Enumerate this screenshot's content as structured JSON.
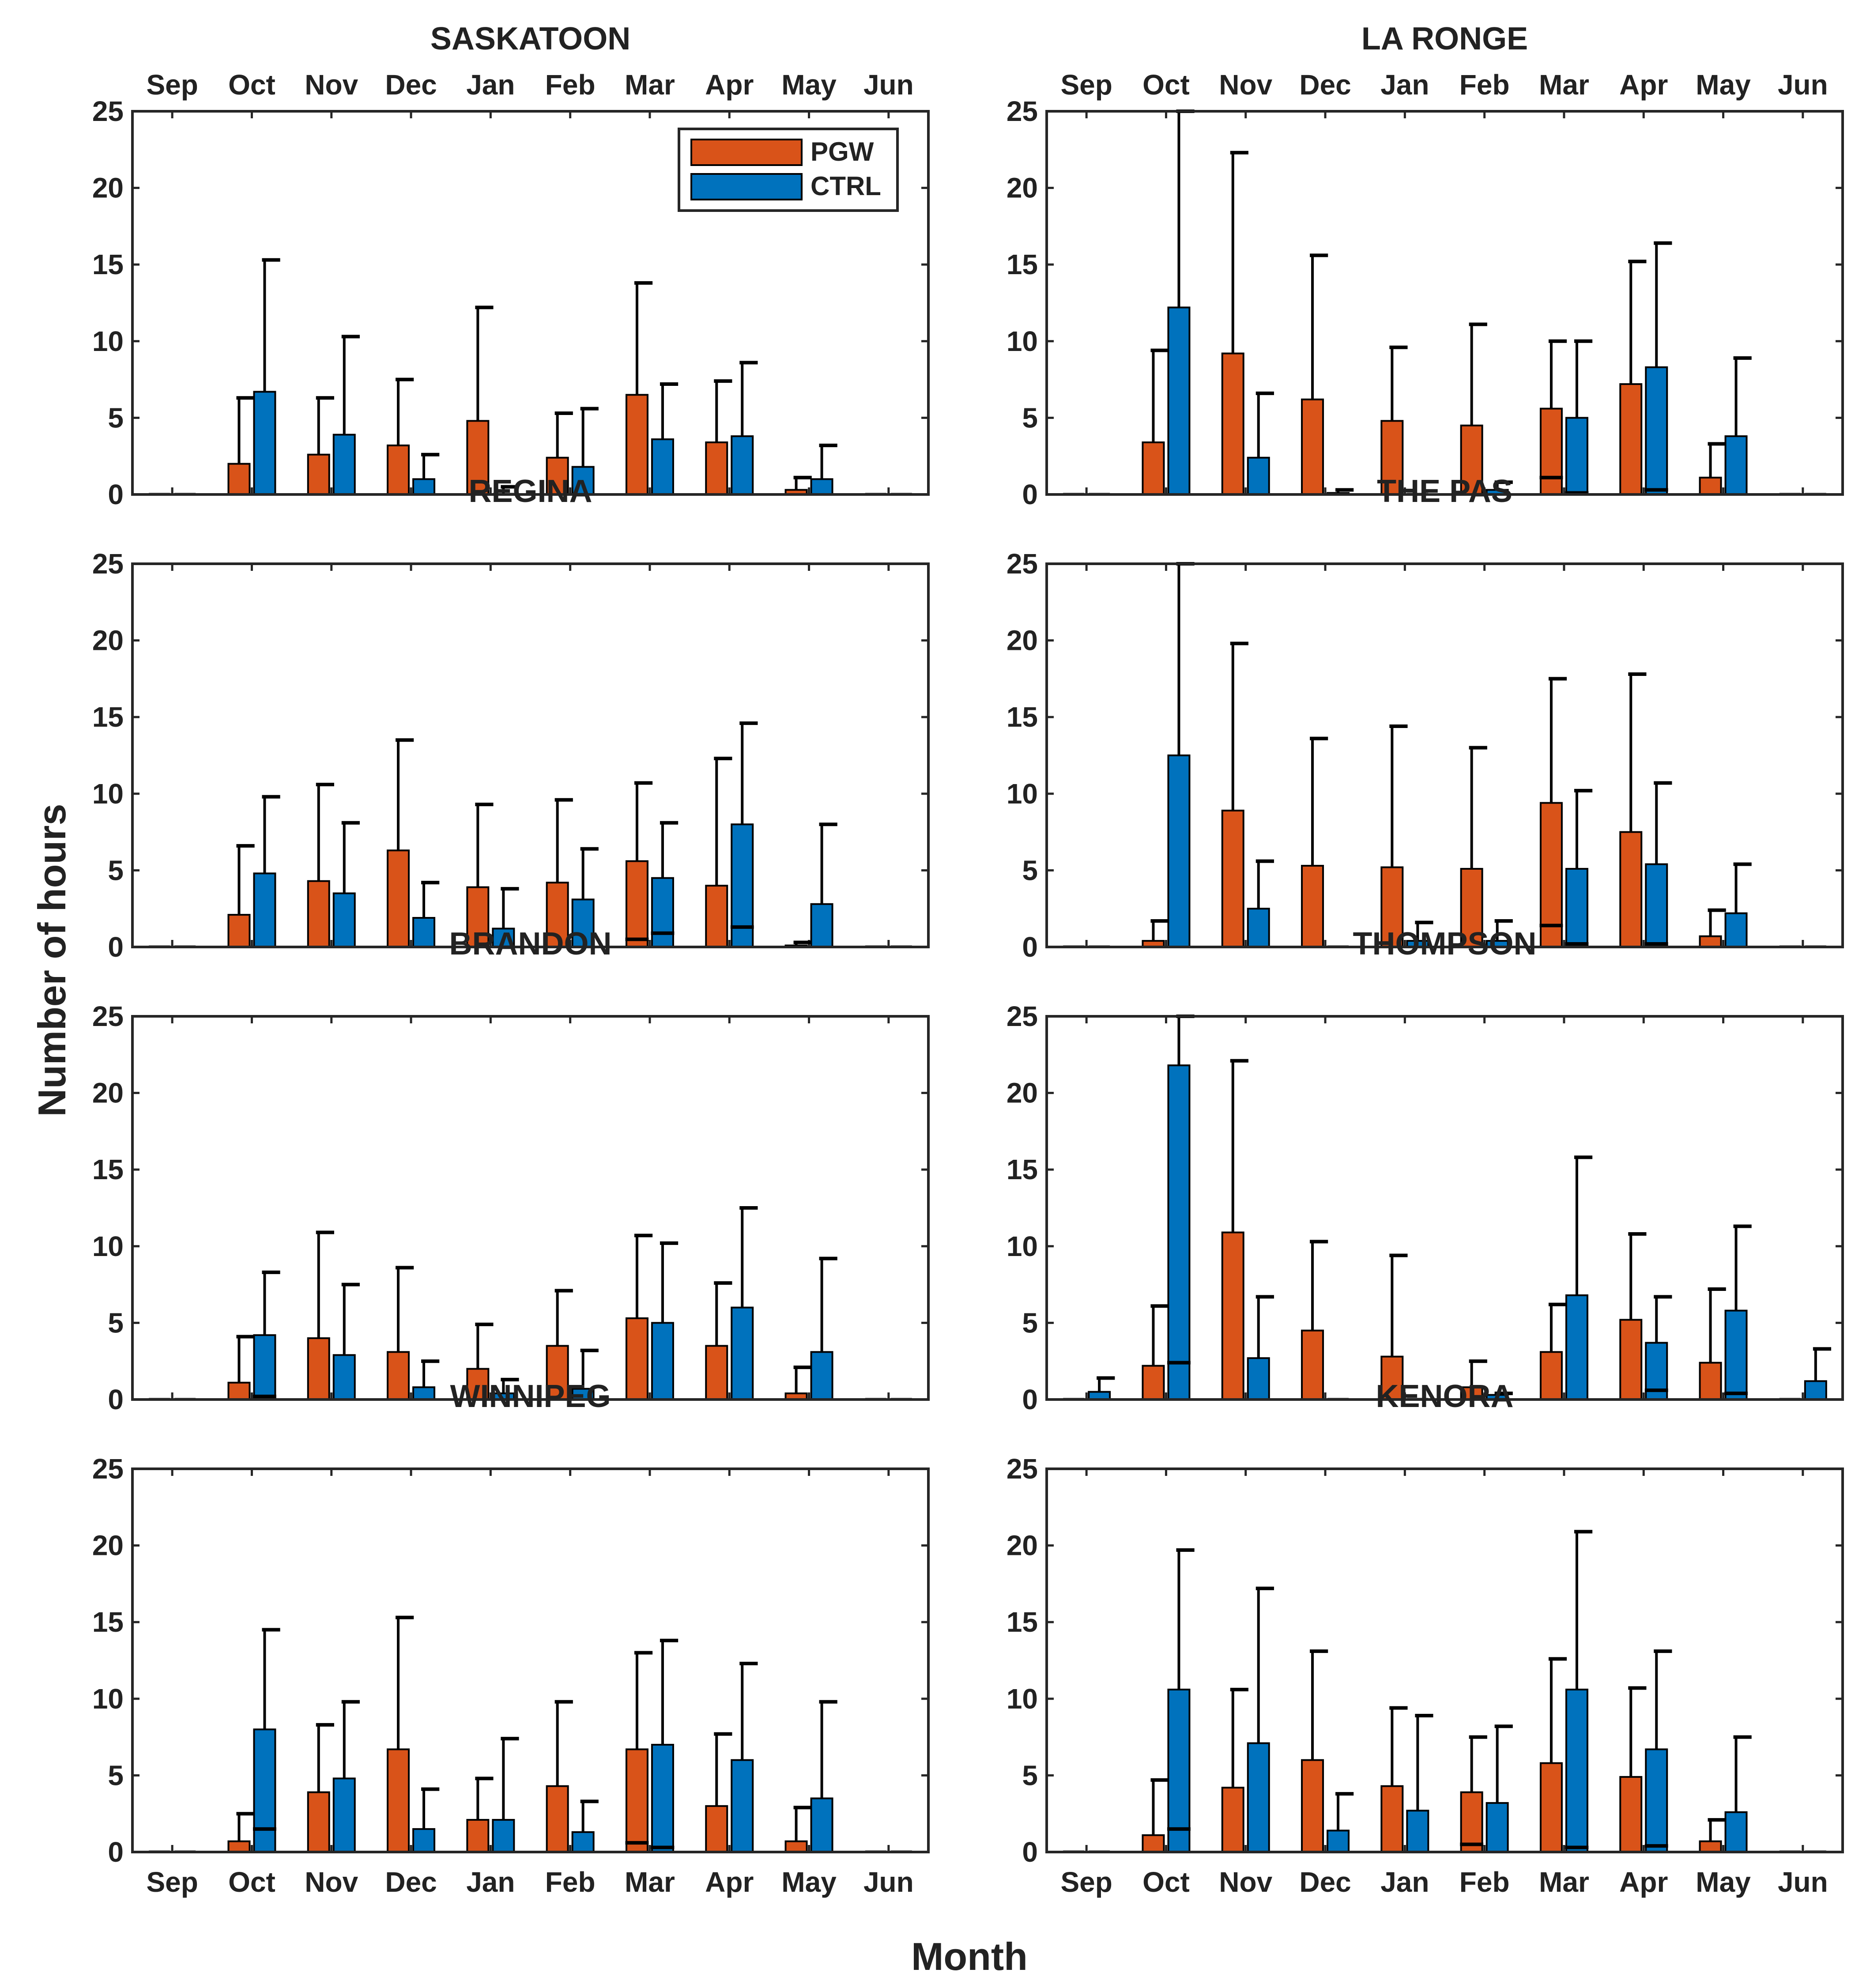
{
  "figure": {
    "xlabel": "Month",
    "ylabel": "Number of hours"
  },
  "colors": {
    "pgw": "#d95319",
    "ctrl": "#0072bd",
    "axis": "#262626",
    "errorbar": "#000000"
  },
  "legend": {
    "placement": "top-right of first panel",
    "items": [
      {
        "label": "PGW",
        "color": "#d95319"
      },
      {
        "label": "CTRL",
        "color": "#0072bd"
      }
    ]
  },
  "chart_data": [
    {
      "type": "bar",
      "title": "SASKATOON",
      "categories": [
        "Sep",
        "Oct",
        "Nov",
        "Dec",
        "Jan",
        "Feb",
        "Mar",
        "Apr",
        "May",
        "Jun"
      ],
      "ylim": [
        0,
        25
      ],
      "yticks": [
        0,
        5,
        10,
        15,
        20,
        25
      ],
      "series": [
        {
          "name": "PGW",
          "values": [
            0,
            2.0,
            2.6,
            3.2,
            4.8,
            2.4,
            6.5,
            3.4,
            0.3,
            0
          ],
          "error_upper": [
            0,
            6.3,
            6.3,
            7.5,
            12.2,
            5.3,
            13.8,
            7.4,
            1.1,
            0
          ],
          "error_lower": [
            0,
            0,
            0,
            0,
            0,
            0,
            0,
            0,
            0,
            0
          ]
        },
        {
          "name": "CTRL",
          "values": [
            0,
            6.7,
            3.9,
            1.0,
            0,
            1.8,
            3.6,
            3.8,
            1.0,
            0
          ],
          "error_upper": [
            0,
            15.3,
            10.3,
            2.6,
            0.5,
            5.6,
            7.2,
            8.6,
            3.2,
            0
          ],
          "error_lower": [
            0,
            0,
            0,
            0,
            0,
            0,
            0,
            0,
            0,
            0
          ]
        }
      ]
    },
    {
      "type": "bar",
      "title": "LA RONGE",
      "categories": [
        "Sep",
        "Oct",
        "Nov",
        "Dec",
        "Jan",
        "Feb",
        "Mar",
        "Apr",
        "May",
        "Jun"
      ],
      "ylim": [
        0,
        25
      ],
      "yticks": [
        0,
        5,
        10,
        15,
        20,
        25
      ],
      "series": [
        {
          "name": "PGW",
          "values": [
            0,
            3.4,
            9.2,
            6.2,
            4.8,
            4.5,
            5.6,
            7.2,
            1.1,
            0
          ],
          "error_upper": [
            0,
            9.4,
            22.3,
            15.6,
            9.6,
            11.1,
            10.0,
            15.2,
            3.3,
            0
          ],
          "error_lower": [
            0,
            0,
            0,
            0,
            0,
            0,
            1.1,
            0,
            0,
            0
          ]
        },
        {
          "name": "CTRL",
          "values": [
            0,
            12.2,
            2.4,
            0.1,
            0,
            0.3,
            5.0,
            8.3,
            3.8,
            0
          ],
          "error_upper": [
            0,
            25.0,
            6.6,
            0.3,
            0,
            0.8,
            10.0,
            16.4,
            8.9,
            0
          ],
          "error_lower": [
            0,
            0,
            0,
            0,
            0,
            0,
            0.1,
            0.3,
            0,
            0
          ]
        }
      ]
    },
    {
      "type": "bar",
      "title": "REGINA",
      "categories": [
        "Sep",
        "Oct",
        "Nov",
        "Dec",
        "Jan",
        "Feb",
        "Mar",
        "Apr",
        "May",
        "Jun"
      ],
      "ylim": [
        0,
        25
      ],
      "yticks": [
        0,
        5,
        10,
        15,
        20,
        25
      ],
      "series": [
        {
          "name": "PGW",
          "values": [
            0,
            2.1,
            4.3,
            6.3,
            3.9,
            4.2,
            5.6,
            4.0,
            0.1,
            0
          ],
          "error_upper": [
            0,
            6.6,
            10.6,
            13.5,
            9.3,
            9.6,
            10.7,
            12.3,
            0.3,
            0
          ],
          "error_lower": [
            0,
            0,
            0,
            0,
            0,
            0,
            0.5,
            0,
            0,
            0
          ]
        },
        {
          "name": "CTRL",
          "values": [
            0,
            4.8,
            3.5,
            1.9,
            1.2,
            3.1,
            4.5,
            8.0,
            2.8,
            0
          ],
          "error_upper": [
            0,
            9.8,
            8.1,
            4.2,
            3.8,
            6.4,
            8.1,
            14.6,
            8.0,
            0
          ],
          "error_lower": [
            0,
            0,
            0,
            0,
            0,
            0,
            0.9,
            1.3,
            0,
            0
          ]
        }
      ]
    },
    {
      "type": "bar",
      "title": "THE PAS",
      "categories": [
        "Sep",
        "Oct",
        "Nov",
        "Dec",
        "Jan",
        "Feb",
        "Mar",
        "Apr",
        "May",
        "Jun"
      ],
      "ylim": [
        0,
        25
      ],
      "yticks": [
        0,
        5,
        10,
        15,
        20,
        25
      ],
      "series": [
        {
          "name": "PGW",
          "values": [
            0,
            0.4,
            8.9,
            5.3,
            5.2,
            5.1,
            9.4,
            7.5,
            0.7,
            0
          ],
          "error_upper": [
            0,
            1.7,
            19.8,
            13.6,
            14.4,
            13.0,
            17.5,
            17.8,
            2.4,
            0
          ],
          "error_lower": [
            0,
            0,
            0,
            0,
            0,
            0,
            1.4,
            0,
            0,
            0
          ]
        },
        {
          "name": "CTRL",
          "values": [
            0,
            12.5,
            2.5,
            0,
            0.4,
            0.4,
            5.1,
            5.4,
            2.2,
            0
          ],
          "error_upper": [
            0,
            25.0,
            5.6,
            0,
            1.6,
            1.7,
            10.2,
            10.7,
            5.4,
            0
          ],
          "error_lower": [
            0,
            0,
            0,
            0,
            0,
            0,
            0.2,
            0.2,
            0,
            0
          ]
        }
      ]
    },
    {
      "type": "bar",
      "title": "BRANDON",
      "categories": [
        "Sep",
        "Oct",
        "Nov",
        "Dec",
        "Jan",
        "Feb",
        "Mar",
        "Apr",
        "May",
        "Jun"
      ],
      "ylim": [
        0,
        25
      ],
      "yticks": [
        0,
        5,
        10,
        15,
        20,
        25
      ],
      "series": [
        {
          "name": "PGW",
          "values": [
            0,
            1.1,
            4.0,
            3.1,
            2.0,
            3.5,
            5.3,
            3.5,
            0.4,
            0
          ],
          "error_upper": [
            0,
            4.1,
            10.9,
            8.6,
            4.9,
            7.1,
            10.7,
            7.6,
            2.1,
            0
          ],
          "error_lower": [
            0,
            0,
            0,
            0,
            0,
            0,
            0,
            0,
            0,
            0
          ]
        },
        {
          "name": "CTRL",
          "values": [
            0,
            4.2,
            2.9,
            0.8,
            0.4,
            0.7,
            5.0,
            6.0,
            3.1,
            0
          ],
          "error_upper": [
            0,
            8.3,
            7.5,
            2.5,
            1.3,
            3.2,
            10.2,
            12.5,
            9.2,
            0
          ],
          "error_lower": [
            0,
            0.2,
            0,
            0,
            0,
            0,
            0,
            0,
            0,
            0
          ]
        }
      ]
    },
    {
      "type": "bar",
      "title": "THOMPSON",
      "categories": [
        "Sep",
        "Oct",
        "Nov",
        "Dec",
        "Jan",
        "Feb",
        "Mar",
        "Apr",
        "May",
        "Jun"
      ],
      "ylim": [
        0,
        25
      ],
      "yticks": [
        0,
        5,
        10,
        15,
        20,
        25
      ],
      "series": [
        {
          "name": "PGW",
          "values": [
            0,
            2.2,
            10.9,
            4.5,
            2.8,
            0.8,
            3.1,
            5.2,
            2.4,
            0
          ],
          "error_upper": [
            0,
            6.1,
            22.1,
            10.3,
            9.4,
            2.5,
            6.2,
            10.8,
            7.2,
            0
          ],
          "error_lower": [
            0,
            0,
            0,
            0,
            0,
            0,
            0,
            0,
            0,
            0
          ]
        },
        {
          "name": "CTRL",
          "values": [
            0.5,
            21.8,
            2.7,
            0,
            0,
            0.3,
            6.8,
            3.7,
            5.8,
            1.2
          ],
          "error_upper": [
            1.4,
            25.0,
            6.7,
            0,
            0,
            0.4,
            15.8,
            6.7,
            11.3,
            3.3
          ],
          "error_lower": [
            0,
            2.4,
            0,
            0,
            0,
            0,
            0,
            0.6,
            0.4,
            0
          ]
        }
      ]
    },
    {
      "type": "bar",
      "title": "WINNIPEG",
      "categories": [
        "Sep",
        "Oct",
        "Nov",
        "Dec",
        "Jan",
        "Feb",
        "Mar",
        "Apr",
        "May",
        "Jun"
      ],
      "ylim": [
        0,
        25
      ],
      "yticks": [
        0,
        5,
        10,
        15,
        20,
        25
      ],
      "series": [
        {
          "name": "PGW",
          "values": [
            0,
            0.7,
            3.9,
            6.7,
            2.1,
            4.3,
            6.7,
            3.0,
            0.7,
            0
          ],
          "error_upper": [
            0,
            2.5,
            8.3,
            15.3,
            4.8,
            9.8,
            13.0,
            7.7,
            2.9,
            0
          ],
          "error_lower": [
            0,
            0,
            0,
            0,
            0,
            0,
            0.6,
            0,
            0,
            0
          ]
        },
        {
          "name": "CTRL",
          "values": [
            0,
            8.0,
            4.8,
            1.5,
            2.1,
            1.3,
            7.0,
            6.0,
            3.5,
            0
          ],
          "error_upper": [
            0,
            14.5,
            9.8,
            4.1,
            7.4,
            3.3,
            13.8,
            12.3,
            9.8,
            0
          ],
          "error_lower": [
            0,
            1.5,
            0,
            0,
            0,
            0,
            0.3,
            0,
            0,
            0
          ]
        }
      ]
    },
    {
      "type": "bar",
      "title": "KENORA",
      "categories": [
        "Sep",
        "Oct",
        "Nov",
        "Dec",
        "Jan",
        "Feb",
        "Mar",
        "Apr",
        "May",
        "Jun"
      ],
      "ylim": [
        0,
        25
      ],
      "yticks": [
        0,
        5,
        10,
        15,
        20,
        25
      ],
      "series": [
        {
          "name": "PGW",
          "values": [
            0,
            1.1,
            4.2,
            6.0,
            4.3,
            3.9,
            5.8,
            4.9,
            0.7,
            0
          ],
          "error_upper": [
            0,
            4.7,
            10.6,
            13.1,
            9.4,
            7.5,
            12.6,
            10.7,
            2.1,
            0
          ],
          "error_lower": [
            0,
            0,
            0,
            0,
            0,
            0.5,
            0,
            0,
            0,
            0
          ]
        },
        {
          "name": "CTRL",
          "values": [
            0,
            10.6,
            7.1,
            1.4,
            2.7,
            3.2,
            10.6,
            6.7,
            2.6,
            0
          ],
          "error_upper": [
            0,
            19.7,
            17.2,
            3.8,
            8.9,
            8.2,
            20.9,
            13.1,
            7.5,
            0
          ],
          "error_lower": [
            0,
            1.5,
            0,
            0,
            0,
            0,
            0.3,
            0.4,
            0,
            0
          ]
        }
      ]
    }
  ]
}
